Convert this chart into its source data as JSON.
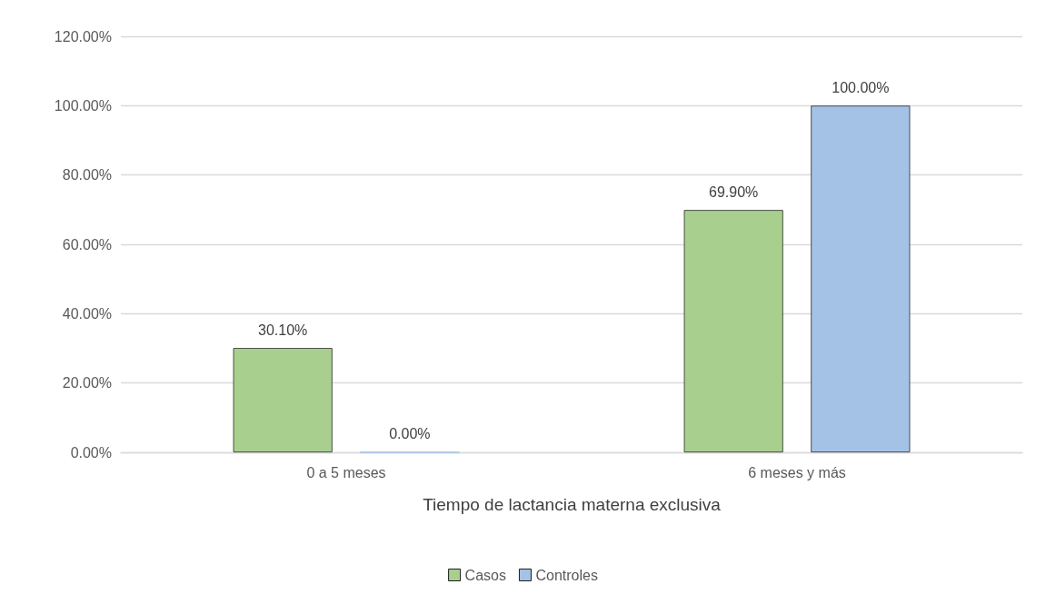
{
  "chart_data": {
    "type": "bar",
    "xlabel": "Tiempo de lactancia materna exclusiva",
    "categories": [
      "0 a 5 meses",
      "6 meses y más"
    ],
    "series": [
      {
        "name": "Casos",
        "color": "#a8cf8e",
        "values": [
          30.1,
          69.9
        ],
        "value_labels": [
          "30.10%",
          "69.90%"
        ]
      },
      {
        "name": "Controles",
        "color": "#a3c2e6",
        "values": [
          0,
          100
        ],
        "value_labels": [
          "0.00%",
          "100.00%"
        ]
      }
    ],
    "ylim": [
      0,
      120
    ],
    "yticks": [
      {
        "value": 0,
        "label": "0.00%"
      },
      {
        "value": 20,
        "label": "20.00%"
      },
      {
        "value": 40,
        "label": "40.00%"
      },
      {
        "value": 60,
        "label": "60.00%"
      },
      {
        "value": 80,
        "label": "80.00%"
      },
      {
        "value": 100,
        "label": "100.00%"
      },
      {
        "value": 120,
        "label": "120.00%"
      }
    ],
    "grid": "y",
    "legend": "bottom"
  }
}
